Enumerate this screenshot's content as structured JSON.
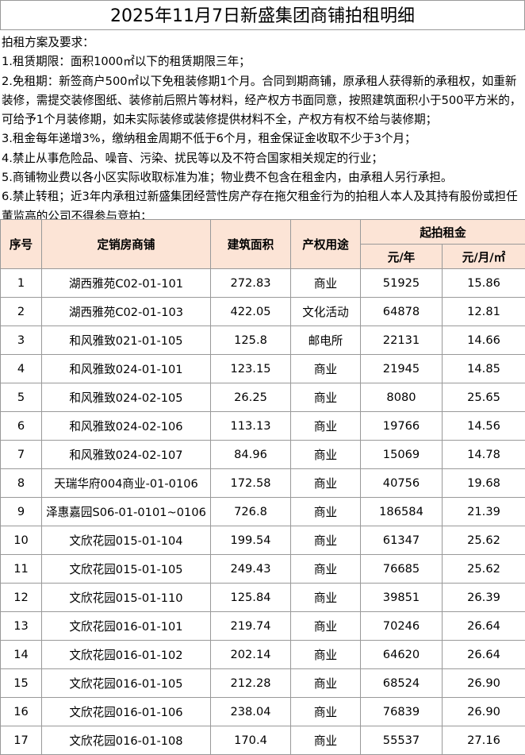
{
  "title": "2025年11月7日新盛集团商铺拍租明细",
  "notes": {
    "heading": "拍租方案及要求：",
    "items": [
      "1.租赁期限：面积1000㎡以下的租赁期限三年；",
      "2.免租期：新签商户500㎡以下免租装修期1个月。合同到期商铺，原承租人获得新的承租权，如重新装修，需提交装修图纸、装修前后照片等材料，经产权方书面同意，按照建筑面积小于500平方米的，可给予1个月装修期，如未实际装修或装修提供材料不全，产权方有权不给与装修期；",
      "3.租金每年递增3%，缴纳租金周期不低于6个月，租金保证金收取不少于3个月；",
      "4.禁止从事危险品、噪音、污染、扰民等以及不符合国家相关规定的行业；",
      "5.商铺物业费以各小区实际收取标准为准；物业费不包含在租金内，由承租人另行承担。",
      "6.禁止转租；近3年内承租过新盛集团经营性房产存在拖欠租金行为的拍租人本人及其持有股份或担任董监高的公司不得参与竞拍；"
    ]
  },
  "table": {
    "headers": {
      "no": "序号",
      "shop": "定销房商铺",
      "area": "建筑面积",
      "use": "产权用途",
      "rent": "起拍租金",
      "per_year": "元/年",
      "per_month_sqm": "元/月/㎡"
    },
    "rows": [
      [
        "1",
        "湖西雅苑C02-01-101",
        "272.83",
        "商业",
        "51925",
        "15.86"
      ],
      [
        "2",
        "湖西雅苑C02-01-103",
        "422.05",
        "文化活动",
        "64878",
        "12.81"
      ],
      [
        "3",
        "和风雅致021-01-105",
        "125.8",
        "邮电所",
        "22131",
        "14.66"
      ],
      [
        "4",
        "和风雅致024-01-101",
        "123.15",
        "商业",
        "21945",
        "14.85"
      ],
      [
        "5",
        "和风雅致024-02-105",
        "26.25",
        "商业",
        "8080",
        "25.65"
      ],
      [
        "6",
        "和风雅致024-02-106",
        "113.13",
        "商业",
        "19766",
        "14.56"
      ],
      [
        "7",
        "和风雅致024-02-107",
        "84.96",
        "商业",
        "15069",
        "14.78"
      ],
      [
        "8",
        "天瑞华府004商业-01-0106",
        "172.58",
        "商业",
        "40756",
        "19.68"
      ],
      [
        "9",
        "泽惠嘉园S06-01-0101~0106",
        "726.8",
        "商业",
        "186584",
        "21.39"
      ],
      [
        "10",
        "文欣花园015-01-104",
        "199.54",
        "商业",
        "61347",
        "25.62"
      ],
      [
        "11",
        "文欣花园015-01-105",
        "249.43",
        "商业",
        "76685",
        "25.62"
      ],
      [
        "12",
        "文欣花园015-01-110",
        "125.84",
        "商业",
        "39851",
        "26.39"
      ],
      [
        "13",
        "文欣花园016-01-101",
        "219.74",
        "商业",
        "70246",
        "26.64"
      ],
      [
        "14",
        "文欣花园016-01-102",
        "202.14",
        "商业",
        "64620",
        "26.64"
      ],
      [
        "15",
        "文欣花园016-01-105",
        "212.28",
        "商业",
        "68524",
        "26.90"
      ],
      [
        "16",
        "文欣花园016-01-106",
        "238.04",
        "商业",
        "76839",
        "26.90"
      ],
      [
        "17",
        "文欣花园016-01-108",
        "170.4",
        "商业",
        "55537",
        "27.16"
      ]
    ]
  }
}
